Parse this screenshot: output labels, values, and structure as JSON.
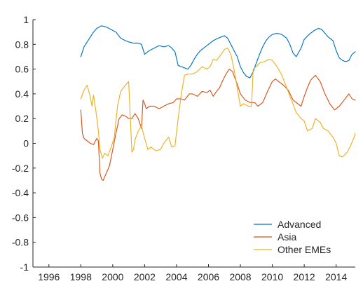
{
  "chart_data": {
    "type": "line",
    "xlim": [
      1995,
      2015.2
    ],
    "ylim": [
      -1,
      1
    ],
    "xticks": [
      1996,
      1998,
      2000,
      2002,
      2004,
      2006,
      2008,
      2010,
      2012,
      2014
    ],
    "xtick_labels": [
      "1996",
      "1998",
      "2000",
      "2002",
      "2004",
      "2006",
      "2008",
      "2010",
      "2012",
      "2014"
    ],
    "yticks": [
      -1,
      -0.8,
      -0.6,
      -0.4,
      -0.2,
      0,
      0.2,
      0.4,
      0.6,
      0.8,
      1
    ],
    "ytick_labels": [
      "-1",
      "-0.8",
      "-0.6",
      "-0.4",
      "-0.2",
      "0",
      "0.2",
      "0.4",
      "0.6",
      "0.8",
      "1"
    ],
    "grid": false,
    "legend_position": "bottom-right",
    "series": [
      {
        "name": "Advanced",
        "color": "#0072BD",
        "x": [
          1998.0,
          1998.2,
          1998.5,
          1998.8,
          1999.0,
          1999.3,
          1999.6,
          1999.9,
          2000.2,
          2000.5,
          2000.8,
          2001.0,
          2001.3,
          2001.6,
          2001.8,
          2002.0,
          2002.3,
          2002.6,
          2002.9,
          2003.2,
          2003.5,
          2003.7,
          2003.9,
          2004.1,
          2004.3,
          2004.5,
          2004.7,
          2004.9,
          2005.1,
          2005.3,
          2005.5,
          2005.8,
          2006.0,
          2006.3,
          2006.6,
          2006.8,
          2007.0,
          2007.2,
          2007.4,
          2007.6,
          2007.8,
          2008.0,
          2008.2,
          2008.4,
          2008.6,
          2008.8,
          2009.0,
          2009.2,
          2009.4,
          2009.6,
          2009.8,
          2010.0,
          2010.3,
          2010.6,
          2010.9,
          2011.1,
          2011.3,
          2011.5,
          2011.8,
          2012.0,
          2012.3,
          2012.6,
          2012.9,
          2013.1,
          2013.3,
          2013.5,
          2013.8,
          2014.0,
          2014.2,
          2014.4,
          2014.6,
          2014.8,
          2015.0,
          2015.2
        ],
        "values": [
          0.7,
          0.78,
          0.84,
          0.9,
          0.93,
          0.95,
          0.94,
          0.92,
          0.9,
          0.85,
          0.83,
          0.82,
          0.81,
          0.81,
          0.8,
          0.72,
          0.75,
          0.77,
          0.79,
          0.78,
          0.79,
          0.77,
          0.74,
          0.63,
          0.62,
          0.61,
          0.6,
          0.63,
          0.68,
          0.72,
          0.75,
          0.78,
          0.8,
          0.83,
          0.85,
          0.86,
          0.87,
          0.85,
          0.8,
          0.75,
          0.7,
          0.62,
          0.57,
          0.54,
          0.53,
          0.58,
          0.65,
          0.72,
          0.78,
          0.83,
          0.86,
          0.88,
          0.89,
          0.88,
          0.85,
          0.8,
          0.73,
          0.7,
          0.77,
          0.84,
          0.88,
          0.91,
          0.93,
          0.92,
          0.89,
          0.86,
          0.83,
          0.75,
          0.69,
          0.67,
          0.66,
          0.67,
          0.72,
          0.74
        ]
      },
      {
        "name": "Asia",
        "color": "#D95319",
        "x": [
          1998.0,
          1998.1,
          1998.2,
          1998.4,
          1998.6,
          1998.8,
          1999.0,
          1999.1,
          1999.2,
          1999.3,
          1999.4,
          1999.6,
          1999.8,
          2000.0,
          2000.2,
          2000.4,
          2000.6,
          2000.8,
          2001.0,
          2001.2,
          2001.4,
          2001.6,
          2001.8,
          2001.9,
          2002.0,
          2002.1,
          2002.3,
          2002.6,
          2002.9,
          2003.2,
          2003.5,
          2003.8,
          2004.0,
          2004.3,
          2004.5,
          2004.8,
          2005.0,
          2005.3,
          2005.6,
          2005.9,
          2006.1,
          2006.3,
          2006.5,
          2006.7,
          2006.9,
          2007.1,
          2007.3,
          2007.5,
          2007.8,
          2008.0,
          2008.3,
          2008.6,
          2008.9,
          2009.1,
          2009.4,
          2009.7,
          2010.0,
          2010.2,
          2010.4,
          2010.7,
          2011.0,
          2011.3,
          2011.6,
          2011.8,
          2012.0,
          2012.2,
          2012.4,
          2012.7,
          2013.0,
          2013.3,
          2013.6,
          2013.9,
          2014.2,
          2014.5,
          2014.8,
          2015.0,
          2015.2
        ],
        "values": [
          0.27,
          0.08,
          0.04,
          0.02,
          0.0,
          -0.01,
          0.04,
          0.02,
          -0.24,
          -0.29,
          -0.3,
          -0.24,
          -0.18,
          -0.05,
          0.08,
          0.2,
          0.23,
          0.22,
          0.2,
          0.2,
          0.24,
          0.2,
          0.12,
          0.35,
          0.32,
          0.28,
          0.3,
          0.3,
          0.28,
          0.3,
          0.32,
          0.33,
          0.36,
          0.36,
          0.35,
          0.4,
          0.4,
          0.38,
          0.42,
          0.41,
          0.43,
          0.38,
          0.42,
          0.45,
          0.51,
          0.56,
          0.6,
          0.58,
          0.48,
          0.4,
          0.35,
          0.33,
          0.33,
          0.3,
          0.33,
          0.42,
          0.5,
          0.52,
          0.5,
          0.47,
          0.43,
          0.35,
          0.32,
          0.3,
          0.38,
          0.45,
          0.51,
          0.55,
          0.5,
          0.4,
          0.32,
          0.27,
          0.3,
          0.35,
          0.4,
          0.36,
          0.35
        ]
      },
      {
        "name": "Other EMEs",
        "color": "#EDB120",
        "x": [
          1998.0,
          1998.2,
          1998.4,
          1998.6,
          1998.7,
          1998.8,
          1999.0,
          1999.1,
          1999.2,
          1999.35,
          1999.5,
          1999.7,
          1999.9,
          2000.1,
          2000.3,
          2000.5,
          2000.8,
          2001.0,
          2001.2,
          2001.3,
          2001.4,
          2001.6,
          2001.8,
          2002.0,
          2002.2,
          2002.4,
          2002.7,
          2003.0,
          2003.2,
          2003.5,
          2003.7,
          2003.9,
          2004.1,
          2004.3,
          2004.5,
          2004.7,
          2005.0,
          2005.3,
          2005.6,
          2005.9,
          2006.1,
          2006.3,
          2006.5,
          2006.8,
          2007.0,
          2007.2,
          2007.4,
          2007.6,
          2007.8,
          2008.0,
          2008.2,
          2008.5,
          2008.7,
          2008.8,
          2009.0,
          2009.2,
          2009.5,
          2009.8,
          2010.0,
          2010.3,
          2010.6,
          2010.9,
          2011.2,
          2011.5,
          2011.8,
          2012.0,
          2012.2,
          2012.5,
          2012.7,
          2013.0,
          2013.2,
          2013.5,
          2013.8,
          2014.0,
          2014.2,
          2014.4,
          2014.7,
          2014.9,
          2015.1,
          2015.2
        ],
        "values": [
          0.36,
          0.43,
          0.47,
          0.37,
          0.3,
          0.39,
          0.21,
          0.1,
          -0.05,
          -0.12,
          -0.08,
          -0.1,
          -0.03,
          0.05,
          0.3,
          0.42,
          0.47,
          0.5,
          -0.07,
          -0.05,
          0.03,
          0.1,
          0.14,
          0.04,
          -0.05,
          -0.03,
          -0.06,
          -0.05,
          0.0,
          0.05,
          -0.03,
          -0.02,
          0.2,
          0.4,
          0.55,
          0.56,
          0.56,
          0.58,
          0.62,
          0.6,
          0.62,
          0.68,
          0.67,
          0.72,
          0.76,
          0.77,
          0.72,
          0.6,
          0.45,
          0.3,
          0.32,
          0.3,
          0.3,
          0.6,
          0.62,
          0.65,
          0.66,
          0.68,
          0.67,
          0.62,
          0.55,
          0.45,
          0.35,
          0.25,
          0.2,
          0.18,
          0.1,
          0.12,
          0.2,
          0.17,
          0.12,
          0.1,
          0.05,
          0.0,
          -0.1,
          -0.11,
          -0.07,
          -0.02,
          0.04,
          0.08
        ]
      }
    ]
  }
}
